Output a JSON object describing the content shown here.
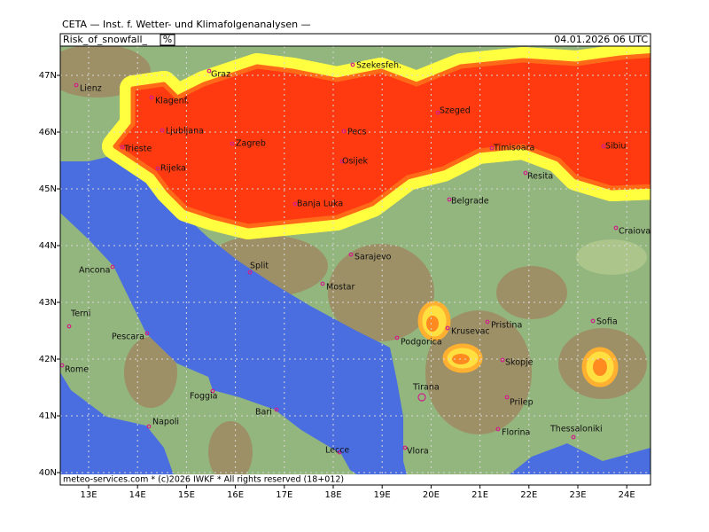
{
  "header": {
    "institute": "CETA — Inst. f. Wetter- und Klimafolgenanalysen —",
    "parameter": "Risk_of_snowfall_",
    "unit": "%",
    "valid_time": "04.01.2026 06 UTC"
  },
  "map": {
    "lat_labels": [
      "47N",
      "46N",
      "45N",
      "44N",
      "43N",
      "42N",
      "41N",
      "40N"
    ],
    "lon_labels": [
      "13E",
      "14E",
      "15E",
      "16E",
      "17E",
      "18E",
      "19E",
      "20E",
      "21E",
      "22E",
      "23E",
      "24E"
    ],
    "cities": [
      "Lienz",
      "Graz",
      "Szekesfeh.",
      "Klagenf.",
      "Ljubljana",
      "Szeged",
      "Pecs",
      "Zagreb",
      "Trieste",
      "Osijek",
      "Timisoara",
      "Sibiu",
      "Rijeka",
      "Resita",
      "Banja Luka",
      "Belgrade",
      "Craiova",
      "Sarajevo",
      "Ancona",
      "Split",
      "Mostar",
      "Terni",
      "Pescara",
      "Podgorica",
      "Krusevac",
      "Pristina",
      "Sofia",
      "Skopje",
      "Rome",
      "Foggia",
      "Tirana",
      "Prilep",
      "Bari",
      "Napoli",
      "Thessaloniki",
      "Florina",
      "Lecce",
      "Vlora"
    ]
  },
  "footer": "meteo-services.com * (c)2026 IWKF * All rights reserved (18+012)"
}
